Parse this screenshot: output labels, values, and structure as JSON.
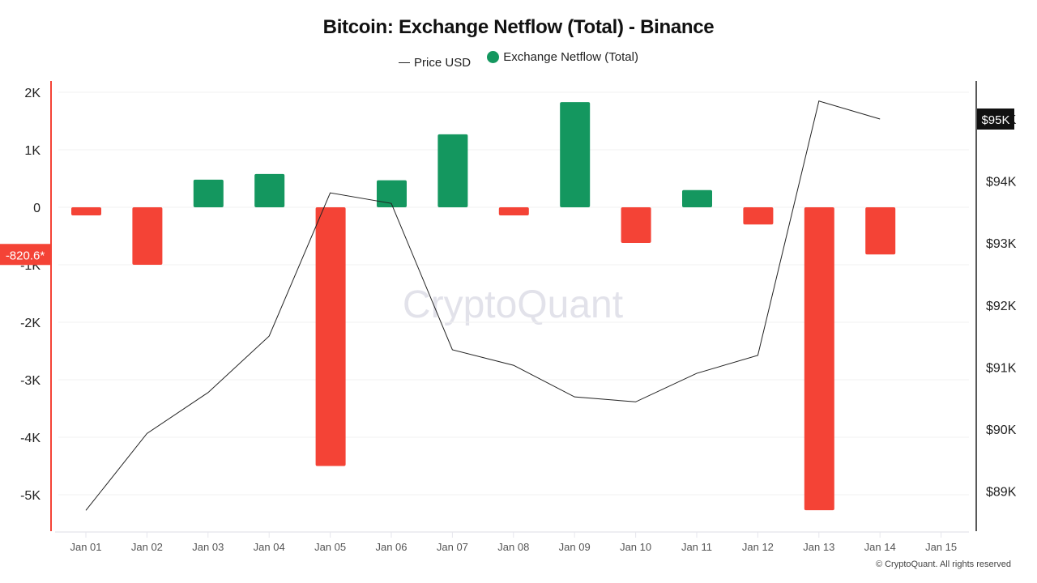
{
  "title": "Bitcoin: Exchange Netflow (Total) - Binance",
  "legend": {
    "price_label": "Price USD",
    "netflow_label": "Exchange Netflow (Total)"
  },
  "watermark": "CryptoQuant",
  "copyright": "© CryptoQuant. All rights reserved",
  "left_axis_marker": "-820.6*",
  "right_axis_marker": "$95K",
  "colors": {
    "positive": "#14975f",
    "negative": "#f44336",
    "price_line": "#222222",
    "left_axis_line": "#f44336",
    "right_axis_line": "#222222"
  },
  "chart_data": {
    "type": "bar",
    "title": "Bitcoin: Exchange Netflow (Total) - Binance",
    "xlabel": "",
    "ylabel": "",
    "categories": [
      "Jan 01",
      "Jan 02",
      "Jan 03",
      "Jan 04",
      "Jan 05",
      "Jan 06",
      "Jan 07",
      "Jan 08",
      "Jan 09",
      "Jan 10",
      "Jan 11",
      "Jan 12",
      "Jan 13",
      "Jan 14",
      "Jan 15"
    ],
    "series": [
      {
        "name": "Exchange Netflow (Total)",
        "type": "bar",
        "axis": "left",
        "values": [
          -140,
          -1000,
          480,
          580,
          -4500,
          470,
          1270,
          -140,
          1830,
          -620,
          300,
          -300,
          -5270,
          -820.6,
          null
        ]
      },
      {
        "name": "Price USD",
        "type": "line",
        "axis": "right",
        "values": [
          88690,
          89930,
          90590,
          91500,
          93810,
          93640,
          91280,
          91030,
          90520,
          90440,
          90900,
          91190,
          95290,
          95000,
          null
        ]
      }
    ],
    "left_axis": {
      "ticks": [
        "2K",
        "1K",
        "0",
        "-1K",
        "-2K",
        "-3K",
        "-4K",
        "-5K"
      ],
      "tick_values": [
        2000,
        1000,
        0,
        -1000,
        -2000,
        -3000,
        -4000,
        -5000
      ],
      "ylim": [
        -5600,
        2200
      ]
    },
    "right_axis": {
      "ticks": [
        "$95K",
        "$94K",
        "$93K",
        "$92K",
        "$91K",
        "$90K",
        "$89K"
      ],
      "tick_values": [
        95000,
        94000,
        93000,
        92000,
        91000,
        90000,
        89000
      ],
      "ylim": [
        88400,
        95600
      ]
    },
    "annotations": [
      "-820.6* (last netflow value)",
      "$95K (last price value)"
    ],
    "grid": true,
    "legend_position": "top"
  }
}
